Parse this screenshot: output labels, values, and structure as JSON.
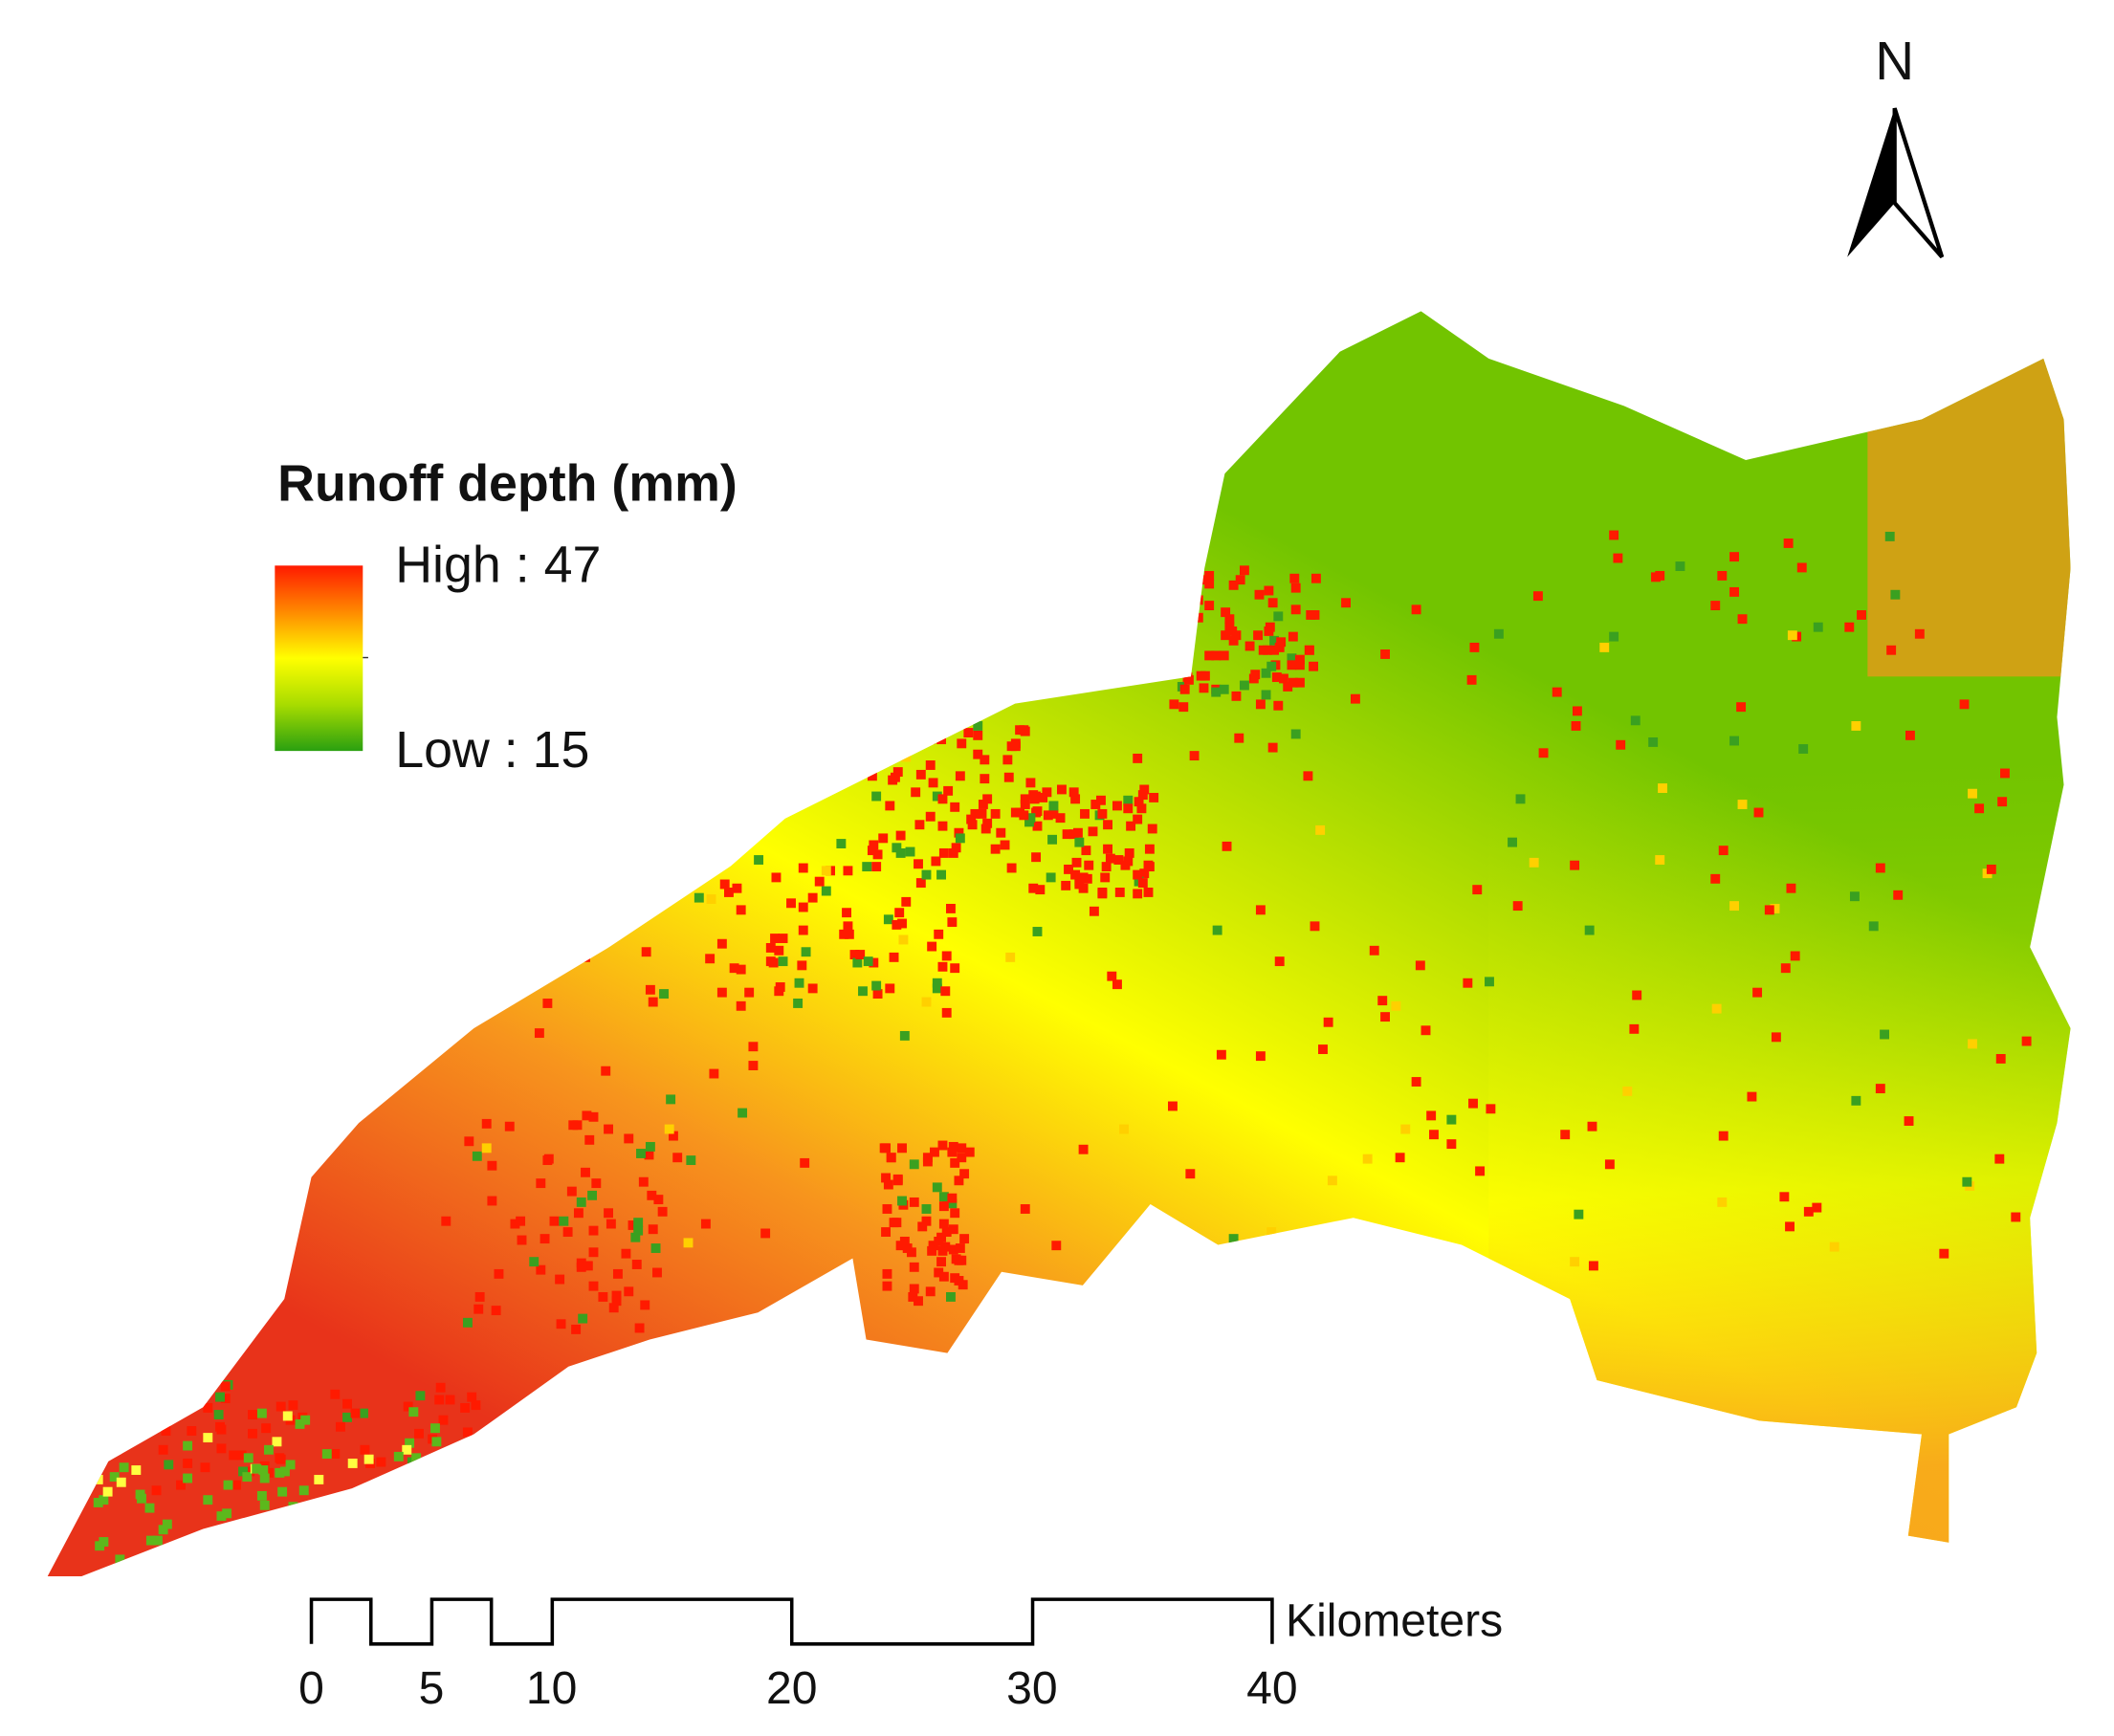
{
  "legend": {
    "title": "Runoff depth (mm)",
    "high": "High : 47",
    "low": "Low : 15"
  },
  "north_arrow": {
    "label": "N"
  },
  "scale_bar": {
    "ticks": [
      0,
      5,
      10,
      20,
      30,
      40
    ],
    "unit": "Kilometers"
  }
}
